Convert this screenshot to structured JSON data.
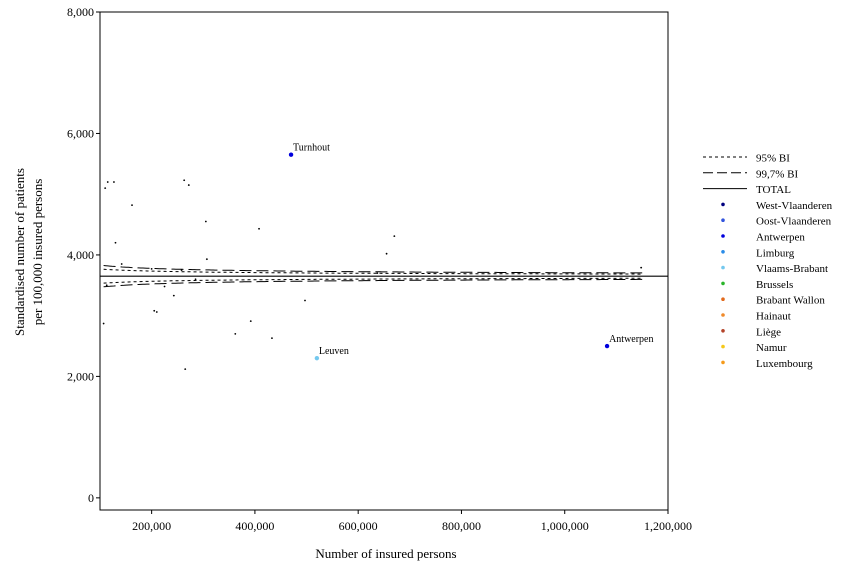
{
  "chart_data": {
    "type": "scatter",
    "title": "",
    "xlabel": "Number of insured persons",
    "ylabel_lines": [
      "Standardised number of patients",
      "per 100,000 insured persons"
    ],
    "xlim": [
      100000,
      1200000
    ],
    "ylim": [
      -200,
      8000
    ],
    "x_ticks": [
      {
        "value": 200000,
        "label": "200,000"
      },
      {
        "value": 400000,
        "label": "400,000"
      },
      {
        "value": 600000,
        "label": "600,000"
      },
      {
        "value": 800000,
        "label": "800,000"
      },
      {
        "value": 1000000,
        "label": "1,000,000"
      },
      {
        "value": 1200000,
        "label": "1,200,000"
      }
    ],
    "y_ticks": [
      {
        "value": 0,
        "label": "0"
      },
      {
        "value": 2000,
        "label": "2,000"
      },
      {
        "value": 4000,
        "label": "4,000"
      },
      {
        "value": 6000,
        "label": "6,000"
      },
      {
        "value": 8000,
        "label": "8,000"
      }
    ],
    "grid": false,
    "legend_position": "right",
    "total": 3650,
    "limit_lines": [
      {
        "name": "95% BI",
        "style": "dotted",
        "z": 1.96
      },
      {
        "name": "99,7% BI",
        "style": "dashed",
        "z": 3.0
      }
    ],
    "mean_line": {
      "name": "TOTAL",
      "style": "solid"
    },
    "limit_x_range": [
      107000,
      1150000
    ],
    "legend": [
      {
        "name": "95% BI",
        "kind": "dotted"
      },
      {
        "name": "99,7% BI",
        "kind": "dashed"
      },
      {
        "name": "TOTAL",
        "kind": "solid"
      },
      {
        "name": "West-Vlaanderen",
        "kind": "marker",
        "color": "#00007f"
      },
      {
        "name": "Oost-Vlaanderen",
        "kind": "marker",
        "color": "#3355dd"
      },
      {
        "name": "Antwerpen",
        "kind": "marker",
        "color": "#0000dd"
      },
      {
        "name": "Limburg",
        "kind": "marker",
        "color": "#2a8ce8"
      },
      {
        "name": "Vlaams-Brabant",
        "kind": "marker",
        "color": "#74c8ee"
      },
      {
        "name": "Brussels",
        "kind": "marker",
        "color": "#2ab52a"
      },
      {
        "name": "Brabant Wallon",
        "kind": "marker",
        "color": "#e26a1c"
      },
      {
        "name": "Hainaut",
        "kind": "marker",
        "color": "#f08a2a"
      },
      {
        "name": "Liège",
        "kind": "marker",
        "color": "#b4442a"
      },
      {
        "name": "Namur",
        "kind": "marker",
        "color": "#f5c81a"
      },
      {
        "name": "Luxembourg",
        "kind": "marker",
        "color": "#f59a1a"
      }
    ],
    "labeled_points": [
      {
        "label": "Turnhout",
        "x": 470000,
        "y": 5650,
        "color": "#0000dd"
      },
      {
        "label": "Leuven",
        "x": 520000,
        "y": 2300,
        "color": "#74c8ee"
      },
      {
        "label": "Antwerpen",
        "x": 1082000,
        "y": 2500,
        "color": "#0000dd"
      }
    ],
    "small_points": [
      {
        "x": 110000,
        "y": 5100
      },
      {
        "x": 115000,
        "y": 5200
      },
      {
        "x": 127000,
        "y": 5200
      },
      {
        "x": 162000,
        "y": 4820
      },
      {
        "x": 263000,
        "y": 5230
      },
      {
        "x": 272000,
        "y": 5150
      },
      {
        "x": 305000,
        "y": 4550
      },
      {
        "x": 408000,
        "y": 4430
      },
      {
        "x": 130000,
        "y": 4200
      },
      {
        "x": 142000,
        "y": 3850
      },
      {
        "x": 200000,
        "y": 3770
      },
      {
        "x": 258000,
        "y": 3750
      },
      {
        "x": 307000,
        "y": 3930
      },
      {
        "x": 655000,
        "y": 4020
      },
      {
        "x": 670000,
        "y": 4310
      },
      {
        "x": 637000,
        "y": 3700
      },
      {
        "x": 1148000,
        "y": 3790
      },
      {
        "x": 113000,
        "y": 3500
      },
      {
        "x": 107000,
        "y": 2870
      },
      {
        "x": 225000,
        "y": 3480
      },
      {
        "x": 243000,
        "y": 3330
      },
      {
        "x": 285000,
        "y": 3600
      },
      {
        "x": 497000,
        "y": 3250
      },
      {
        "x": 205000,
        "y": 3080
      },
      {
        "x": 210000,
        "y": 3060
      },
      {
        "x": 362000,
        "y": 2700
      },
      {
        "x": 392000,
        "y": 2910
      },
      {
        "x": 433000,
        "y": 2630
      },
      {
        "x": 265000,
        "y": 2120
      }
    ]
  }
}
